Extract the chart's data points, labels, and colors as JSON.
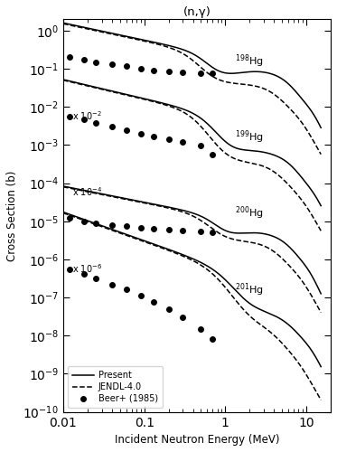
{
  "title": "(n,γ)",
  "xlabel": "Incident Neutron Energy (MeV)",
  "ylabel": "Cross Section (b)",
  "xlim": [
    0.01,
    20
  ],
  "ylim": [
    1e-10,
    2
  ],
  "background_color": "#ffffff",
  "beer_198_x": [
    0.012,
    0.018,
    0.025,
    0.04,
    0.06,
    0.09,
    0.13,
    0.2,
    0.3,
    0.5,
    0.7
  ],
  "beer_198_y": [
    0.2,
    0.17,
    0.15,
    0.13,
    0.115,
    0.1,
    0.092,
    0.085,
    0.082,
    0.078,
    0.075
  ],
  "beer_199_x": [
    0.012,
    0.018,
    0.025,
    0.04,
    0.06,
    0.09,
    0.13,
    0.2,
    0.3,
    0.5,
    0.7
  ],
  "beer_199_y_scale": 0.01,
  "beer_199_y_raw": [
    0.55,
    0.46,
    0.38,
    0.3,
    0.25,
    0.2,
    0.165,
    0.14,
    0.12,
    0.095,
    0.055
  ],
  "beer_200_x": [
    0.012,
    0.018,
    0.025,
    0.04,
    0.06,
    0.09,
    0.13,
    0.2,
    0.3,
    0.5,
    0.7
  ],
  "beer_200_y_scale": 0.0001,
  "beer_200_y_raw": [
    0.12,
    0.1,
    0.09,
    0.08,
    0.073,
    0.068,
    0.064,
    0.06,
    0.057,
    0.053,
    0.05
  ],
  "beer_201_x": [
    0.012,
    0.018,
    0.025,
    0.04,
    0.06,
    0.09,
    0.13,
    0.2,
    0.3,
    0.5,
    0.7
  ],
  "beer_201_y_scale": 1e-06,
  "beer_201_y_raw": [
    0.55,
    0.42,
    0.32,
    0.22,
    0.16,
    0.11,
    0.075,
    0.05,
    0.03,
    0.015,
    0.008
  ]
}
